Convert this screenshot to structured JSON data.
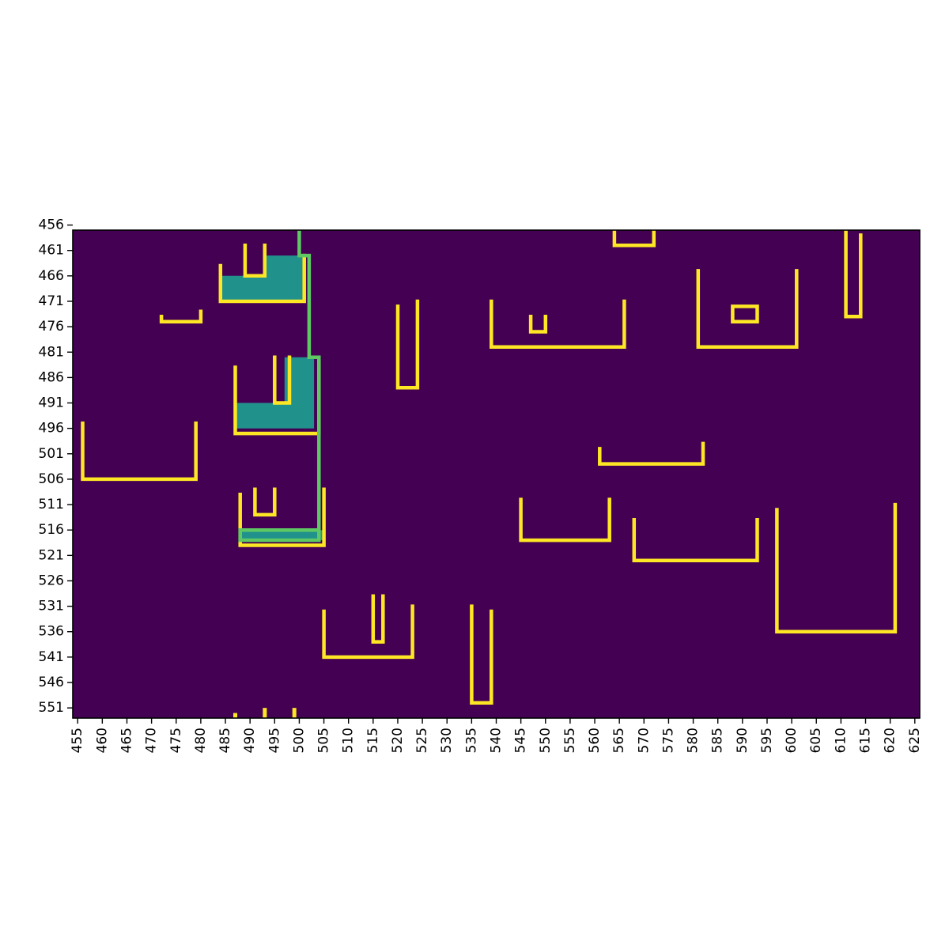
{
  "chart_data": {
    "type": "heatmap",
    "title": "",
    "xlabel": "",
    "ylabel": "",
    "xlim": [
      454,
      626
    ],
    "ylim": [
      457,
      553
    ],
    "x_ticks": [
      455,
      460,
      465,
      470,
      475,
      480,
      485,
      490,
      495,
      500,
      505,
      510,
      515,
      520,
      525,
      530,
      535,
      540,
      545,
      550,
      555,
      560,
      565,
      570,
      575,
      580,
      585,
      590,
      595,
      600,
      605,
      610,
      615,
      620,
      625
    ],
    "y_ticks": [
      456,
      461,
      466,
      471,
      476,
      481,
      486,
      491,
      496,
      501,
      506,
      511,
      516,
      521,
      526,
      531,
      536,
      541,
      546,
      551
    ],
    "background_value": 0,
    "colormap": "viridis",
    "colors": {
      "background": "#440154",
      "outline": "#fde725",
      "filled_region": "#21918c",
      "path": "#5ec962"
    },
    "grid": false,
    "legend": "none",
    "filled_regions": [
      {
        "points": [
          [
            484,
            466
          ],
          [
            484,
            471
          ],
          [
            501,
            471
          ],
          [
            501,
            462
          ],
          [
            493,
            462
          ],
          [
            493,
            466
          ]
        ]
      },
      {
        "points": [
          [
            487,
            491
          ],
          [
            487,
            496
          ],
          [
            503,
            496
          ],
          [
            503,
            482
          ],
          [
            497,
            482
          ],
          [
            497,
            491
          ]
        ]
      },
      {
        "points": [
          [
            488,
            516
          ],
          [
            488,
            518
          ],
          [
            505,
            518
          ],
          [
            505,
            516
          ]
        ]
      }
    ],
    "outline_paths": [
      {
        "points": [
          [
            484,
            464
          ],
          [
            484,
            471
          ],
          [
            501,
            471
          ],
          [
            501,
            462
          ]
        ]
      },
      {
        "points": [
          [
            489,
            460
          ],
          [
            489,
            466
          ],
          [
            493,
            466
          ],
          [
            493,
            460
          ]
        ]
      },
      {
        "points": [
          [
            472,
            474
          ],
          [
            472,
            475
          ],
          [
            480,
            475
          ],
          [
            480,
            473
          ]
        ]
      },
      {
        "points": [
          [
            487,
            484
          ],
          [
            487,
            497
          ],
          [
            504,
            497
          ],
          [
            504,
            483
          ]
        ]
      },
      {
        "points": [
          [
            495,
            482
          ],
          [
            495,
            491
          ],
          [
            498,
            491
          ],
          [
            498,
            482
          ]
        ]
      },
      {
        "points": [
          [
            456,
            495
          ],
          [
            456,
            506
          ],
          [
            479,
            506
          ],
          [
            479,
            495
          ]
        ]
      },
      {
        "points": [
          [
            488,
            509
          ],
          [
            488,
            519
          ],
          [
            505,
            519
          ],
          [
            505,
            508
          ]
        ]
      },
      {
        "points": [
          [
            491,
            508
          ],
          [
            491,
            513
          ],
          [
            495,
            513
          ],
          [
            495,
            508
          ]
        ]
      },
      {
        "points": [
          [
            520,
            472
          ],
          [
            520,
            488
          ],
          [
            524,
            488
          ],
          [
            524,
            471
          ]
        ]
      },
      {
        "points": [
          [
            539,
            471
          ],
          [
            539,
            480
          ],
          [
            566,
            480
          ],
          [
            566,
            471
          ]
        ]
      },
      {
        "points": [
          [
            547,
            474
          ],
          [
            547,
            477
          ],
          [
            550,
            477
          ],
          [
            550,
            474
          ]
        ]
      },
      {
        "points": [
          [
            564,
            456
          ],
          [
            564,
            460
          ],
          [
            572,
            460
          ],
          [
            572,
            457
          ]
        ]
      },
      {
        "points": [
          [
            581,
            465
          ],
          [
            581,
            480
          ],
          [
            601,
            480
          ],
          [
            601,
            465
          ]
        ]
      },
      {
        "points": [
          [
            588,
            472
          ],
          [
            588,
            475
          ],
          [
            593,
            475
          ],
          [
            593,
            472
          ],
          [
            588,
            472
          ]
        ]
      },
      {
        "points": [
          [
            611,
            457
          ],
          [
            611,
            474
          ],
          [
            614,
            474
          ],
          [
            614,
            458
          ]
        ]
      },
      {
        "points": [
          [
            561,
            500
          ],
          [
            561,
            503
          ],
          [
            582,
            503
          ],
          [
            582,
            499
          ]
        ]
      },
      {
        "points": [
          [
            545,
            510
          ],
          [
            545,
            518
          ],
          [
            563,
            518
          ],
          [
            563,
            510
          ]
        ]
      },
      {
        "points": [
          [
            568,
            514
          ],
          [
            568,
            522
          ],
          [
            593,
            522
          ],
          [
            593,
            514
          ]
        ]
      },
      {
        "points": [
          [
            597,
            512
          ],
          [
            597,
            536
          ],
          [
            621,
            536
          ],
          [
            621,
            511
          ]
        ]
      },
      {
        "points": [
          [
            505,
            532
          ],
          [
            505,
            541
          ],
          [
            523,
            541
          ],
          [
            523,
            531
          ]
        ]
      },
      {
        "points": [
          [
            515,
            529
          ],
          [
            515,
            538
          ],
          [
            517,
            538
          ],
          [
            517,
            529
          ]
        ]
      },
      {
        "points": [
          [
            535,
            531
          ],
          [
            535,
            550
          ],
          [
            539,
            550
          ],
          [
            539,
            532
          ]
        ]
      }
    ],
    "outline_dots": [
      {
        "x": 487,
        "y": 552
      },
      {
        "x": 493,
        "y": 551
      },
      {
        "x": 499,
        "y": 551
      }
    ],
    "path_line": {
      "points": [
        [
          500,
          456
        ],
        [
          500,
          462
        ],
        [
          502,
          462
        ],
        [
          502,
          482
        ],
        [
          504,
          482
        ],
        [
          504,
          518
        ],
        [
          488,
          518
        ],
        [
          488,
          516
        ],
        [
          504,
          516
        ]
      ]
    }
  }
}
